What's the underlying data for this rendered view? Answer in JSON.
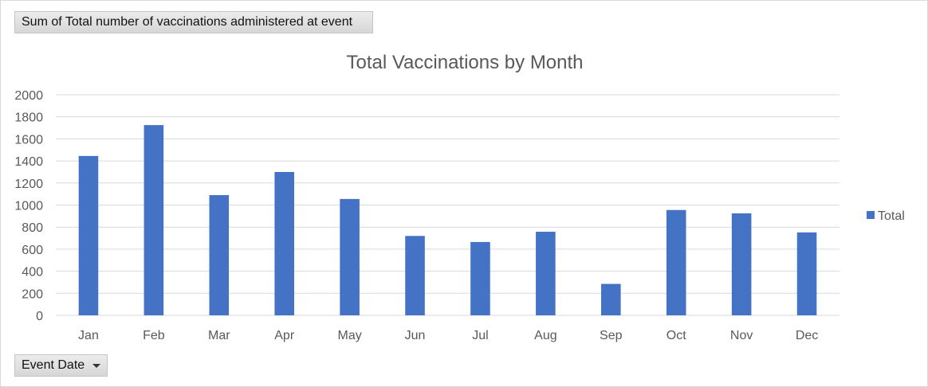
{
  "value_field_button": {
    "label": "Sum of Total number of vaccinations administered at event"
  },
  "axis_field_button": {
    "label": "Event Date",
    "icon": "chevron-down-icon"
  },
  "chart_data": {
    "type": "bar",
    "title": "Total Vaccinations by Month",
    "categories": [
      "Jan",
      "Feb",
      "Mar",
      "Apr",
      "May",
      "Jun",
      "Jul",
      "Aug",
      "Sep",
      "Oct",
      "Nov",
      "Dec"
    ],
    "series": [
      {
        "name": "Total",
        "values": [
          1445,
          1725,
          1090,
          1300,
          1055,
          720,
          665,
          758,
          285,
          955,
          925,
          752
        ],
        "color": "#4472c4"
      }
    ],
    "ylim": [
      0,
      2000
    ],
    "yticks": [
      0,
      200,
      400,
      600,
      800,
      1000,
      1200,
      1400,
      1600,
      1800,
      2000
    ],
    "xlabel": "",
    "ylabel": "",
    "grid": true,
    "legend_position": "right"
  }
}
